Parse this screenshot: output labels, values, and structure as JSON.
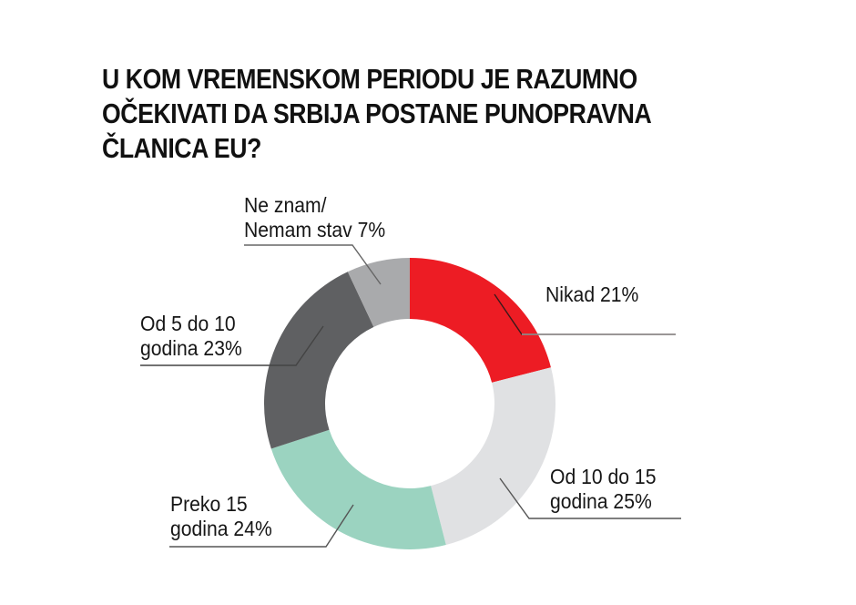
{
  "title": {
    "lines": [
      "U KOM VREMENSKOM PERIODU JE RAZUMNO",
      "OČEKIVATI DA SRBIJA POSTANE PUNOPRAVNA",
      "ČLANICA EU?"
    ]
  },
  "labels": {
    "nikad": {
      "line1": "Nikad 21%"
    },
    "od10do15": {
      "line1": "Od 10 do 15",
      "line2": "godina 25%"
    },
    "preko15": {
      "line1": "Preko 15",
      "line2": "godina 24%"
    },
    "od5do10": {
      "line1": "Od 5 do 10",
      "line2": "godina 23%"
    },
    "neznam": {
      "line1": "Ne znam/",
      "line2": "Nemam stav 7%"
    }
  },
  "colors": {
    "nikad": "#ed1c24",
    "od10do15": "#e0e1e3",
    "preko15": "#9bd3c0",
    "od5do10": "#5f6062",
    "neznam": "#a9aaac",
    "leader": "#4a4a4a"
  },
  "chart_data": {
    "type": "pie",
    "variant": "donut",
    "title": "U KOM VREMENSKOM PERIODU JE RAZUMNO OČEKIVATI DA SRBIJA POSTANE PUNOPRAVNA ČLANICA EU?",
    "categories": [
      "Nikad",
      "Od 10 do 15 godina",
      "Preko 15 godina",
      "Od 5 do 10 godina",
      "Ne znam/Nemam stav"
    ],
    "values": [
      21,
      25,
      24,
      23,
      7
    ],
    "unit": "%",
    "colors": [
      "#ed1c24",
      "#e0e1e3",
      "#9bd3c0",
      "#5f6062",
      "#a9aaac"
    ],
    "start_angle": "12 o'clock",
    "direction": "clockwise",
    "legend": "none (callout labels with leader lines)"
  }
}
